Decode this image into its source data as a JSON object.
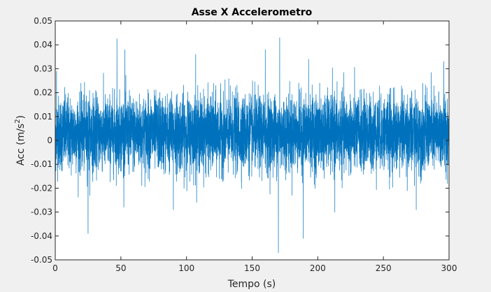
{
  "chart_data": {
    "type": "line",
    "title": "Asse X Accelerometro",
    "xlabel": "Tempo (s)",
    "ylabel_main": "Acc (m/s",
    "ylabel_sup": "2",
    "ylabel_close": ")",
    "xlim": [
      0,
      300
    ],
    "ylim": [
      -0.05,
      0.05
    ],
    "xticks": [
      0,
      50,
      100,
      150,
      200,
      250,
      300
    ],
    "yticks": [
      -0.05,
      -0.04,
      -0.03,
      -0.02,
      -0.01,
      0,
      0.01,
      0.02,
      0.03,
      0.04,
      0.05
    ],
    "xtick_labels": [
      "0",
      "50",
      "100",
      "150",
      "200",
      "250",
      "300"
    ],
    "ytick_labels": [
      "-0.05",
      "-0.04",
      "-0.03",
      "-0.02",
      "-0.01",
      "0",
      "0.01",
      "0.02",
      "0.03",
      "0.04",
      "0.05"
    ],
    "grid": false,
    "series_color": "#0072bd",
    "signal": {
      "mean": 0.003,
      "core_min": -0.005,
      "core_max": 0.011,
      "typical_min": -0.02,
      "typical_max": 0.03,
      "peaks": [
        {
          "x": 1,
          "y": 0.029
        },
        {
          "x": 25,
          "y": -0.039
        },
        {
          "x": 47,
          "y": 0.0425
        },
        {
          "x": 53,
          "y": 0.038
        },
        {
          "x": 90,
          "y": -0.029
        },
        {
          "x": 107,
          "y": 0.036
        },
        {
          "x": 160,
          "y": 0.038
        },
        {
          "x": 170,
          "y": -0.047
        },
        {
          "x": 171,
          "y": 0.043
        },
        {
          "x": 189,
          "y": -0.041
        },
        {
          "x": 193,
          "y": 0.034
        },
        {
          "x": 213,
          "y": -0.03
        },
        {
          "x": 275,
          "y": -0.029
        },
        {
          "x": 296,
          "y": 0.033
        }
      ]
    }
  }
}
